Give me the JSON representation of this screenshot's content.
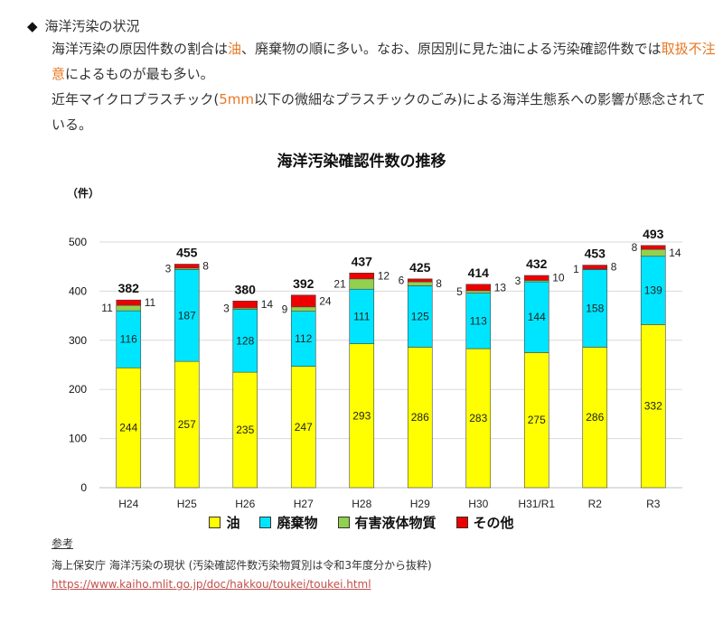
{
  "heading": {
    "bullet": "◆",
    "text": "海洋汚染の状況"
  },
  "paragraph1": {
    "t1": "海洋汚染の原因件数の割合は",
    "h1": "油",
    "t2": "、廃棄物の順に多い。なお、原因別に見た油による汚染確認件数では",
    "h2": "取扱不注意",
    "t3": "によるものが最も多い。"
  },
  "paragraph2": {
    "t1": "近年マイクロプラスチック(",
    "h1": "5mm",
    "t2": "以下の微細なプラスチックのごみ)による海洋生態系への影響が懸念されている。"
  },
  "chart_data": {
    "type": "bar",
    "stacked": true,
    "title": "海洋汚染確認件数の推移",
    "ylabel": "（件）",
    "ylim": [
      0,
      500
    ],
    "yticks": [
      0,
      100,
      200,
      300,
      400,
      500
    ],
    "categories": [
      "H24",
      "H25",
      "H26",
      "H27",
      "H28",
      "H29",
      "H30",
      "H31/R1",
      "R2",
      "R3"
    ],
    "series": [
      {
        "name": "油",
        "color": "#ffff00",
        "values": [
          244,
          257,
          235,
          247,
          293,
          286,
          283,
          275,
          286,
          332
        ]
      },
      {
        "name": "廃棄物",
        "color": "#00e5ff",
        "values": [
          116,
          187,
          128,
          112,
          111,
          125,
          113,
          144,
          158,
          139
        ]
      },
      {
        "name": "有害液体物質",
        "color": "#92d050",
        "values": [
          11,
          3,
          3,
          9,
          21,
          8,
          5,
          3,
          1,
          14
        ]
      },
      {
        "name": "その他",
        "color": "#ee0000",
        "values": [
          11,
          8,
          14,
          24,
          12,
          6,
          13,
          10,
          8,
          8
        ]
      }
    ],
    "totals": [
      382,
      455,
      380,
      392,
      437,
      425,
      414,
      432,
      453,
      493
    ],
    "grid": true,
    "legend": "bottom"
  },
  "reference": {
    "label": "参考",
    "source": "海上保安庁 海洋汚染の現状 (汚染確認件数汚染物質別は令和3年度分から抜粋)",
    "url": "https://www.kaiho.mlit.go.jp/doc/hakkou/toukei/toukei.html"
  }
}
